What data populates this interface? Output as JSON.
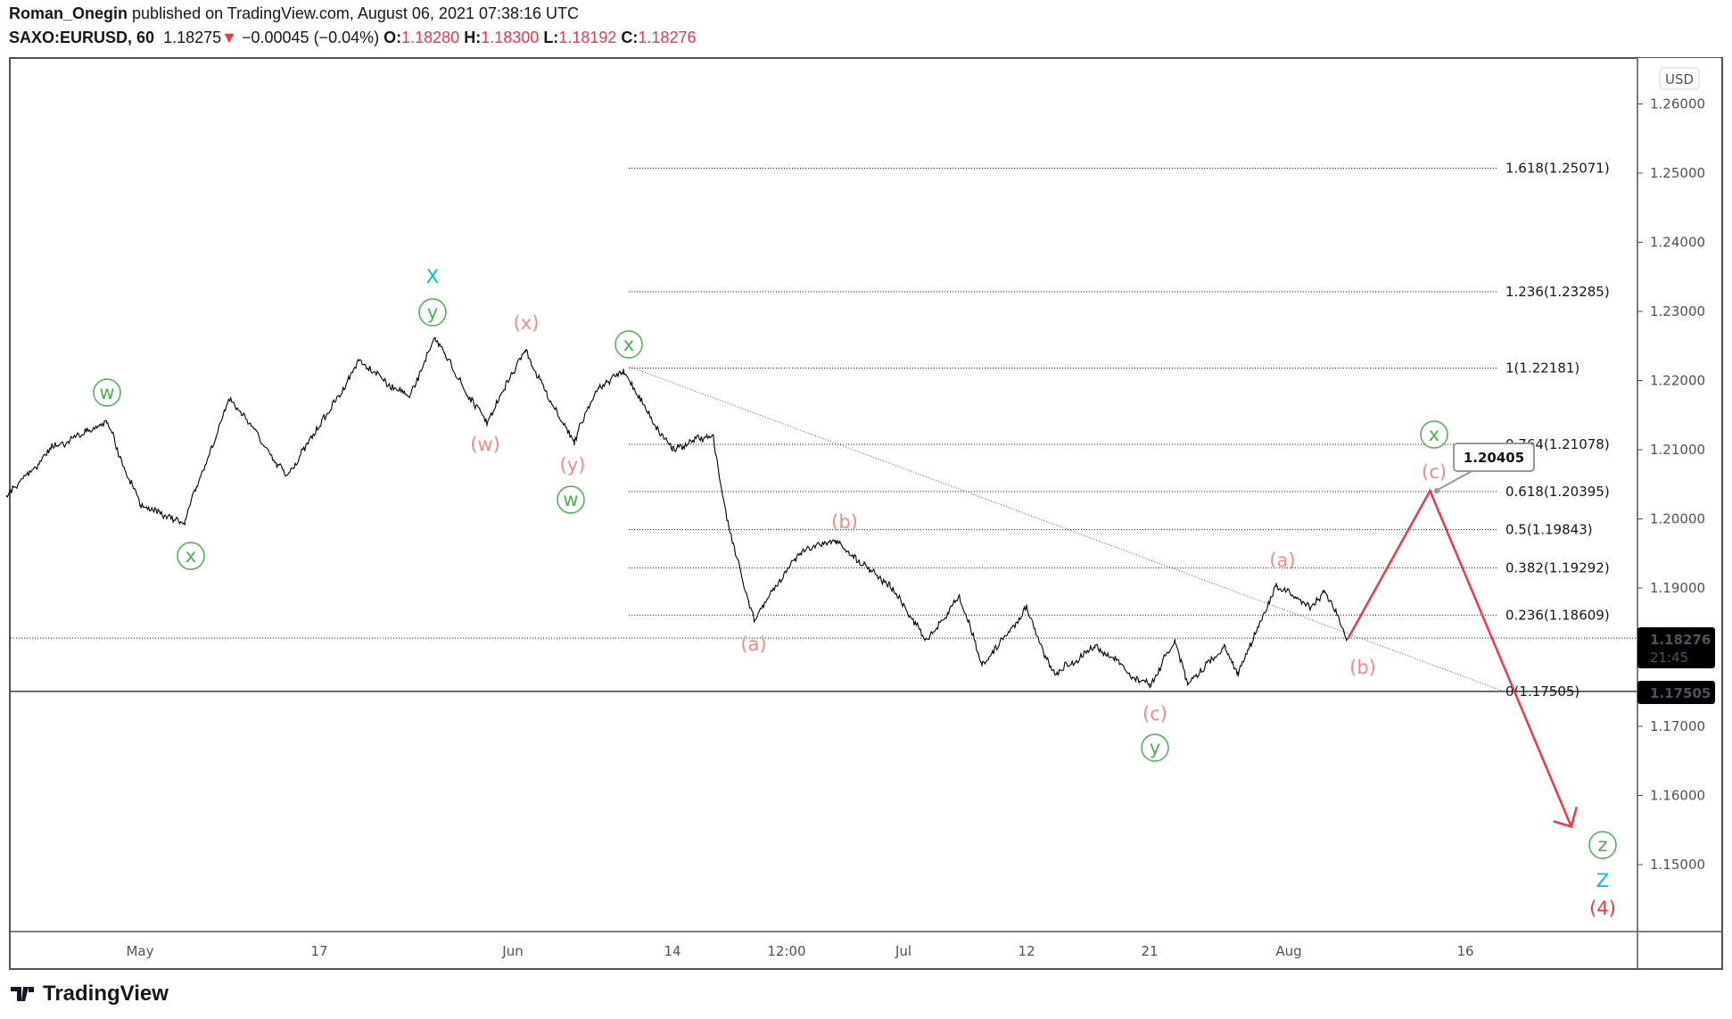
{
  "header": {
    "author": "Roman_Onegin",
    "published": "published on TradingView.com, August 06, 2021 07:38:16 UTC",
    "symbol": "SAXO:EURUSD, 60",
    "last": "1.18275",
    "change": "−0.00045 (−0.04%)",
    "o_label": "O:",
    "o": "1.18280",
    "h_label": "H:",
    "h": "1.18300",
    "l_label": "L:",
    "l": "1.18192",
    "c_label": "C:",
    "c": "1.18276",
    "down_icon": "triangle-down-icon",
    "down_color": "#f23645"
  },
  "currency": "USD",
  "price_ticks": [
    "1.26000",
    "1.25000",
    "1.24000",
    "1.23000",
    "1.22000",
    "1.21000",
    "1.20000",
    "1.19000",
    "1.17000",
    "1.16000",
    "1.15000"
  ],
  "time_ticks": [
    "May",
    "17",
    "Jun",
    "14",
    "12:00",
    "Jul",
    "12",
    "21",
    "Aug",
    "16"
  ],
  "current_price": {
    "price": "1.18276",
    "countdown": "21:45"
  },
  "level_price": "1.17505",
  "callout": "1.20405",
  "fib_levels": [
    {
      "label": "1.618(1.25071)",
      "price": 1.25071
    },
    {
      "label": "1.236(1.23285)",
      "price": 1.23285
    },
    {
      "label": "1(1.22181)",
      "price": 1.22181
    },
    {
      "label": "0.764(1.21078)",
      "price": 1.21078
    },
    {
      "label": "0.618(1.20395)",
      "price": 1.20395
    },
    {
      "label": "0.5(1.19843)",
      "price": 1.19843
    },
    {
      "label": "0.382(1.19292)",
      "price": 1.19292
    },
    {
      "label": "0.236(1.18609)",
      "price": 1.18609
    },
    {
      "label": "0(1.17505)",
      "price": 1.17505
    }
  ],
  "wave_labels": [
    {
      "text": "X",
      "style": "cyan"
    },
    {
      "text": "y",
      "style": "green-circle"
    },
    {
      "text": "(x)",
      "style": "pink"
    },
    {
      "text": "w",
      "style": "green-circle"
    },
    {
      "text": "x",
      "style": "green-circle"
    },
    {
      "text": "(w)",
      "style": "pink"
    },
    {
      "text": "(y)",
      "style": "pink"
    },
    {
      "text": "w",
      "style": "green-circle"
    },
    {
      "text": "x",
      "style": "green-circle"
    },
    {
      "text": "(b)",
      "style": "pink"
    },
    {
      "text": "(a)",
      "style": "pink"
    },
    {
      "text": "(c)",
      "style": "pink"
    },
    {
      "text": "y",
      "style": "green-circle"
    },
    {
      "text": "(a)",
      "style": "pink"
    },
    {
      "text": "(b)",
      "style": "pink"
    },
    {
      "text": "x",
      "style": "green-circle"
    },
    {
      "text": "(c)",
      "style": "pink"
    },
    {
      "text": "z",
      "style": "green-circle"
    },
    {
      "text": "Z",
      "style": "cyan"
    },
    {
      "text": "(4)",
      "style": "red"
    }
  ],
  "colors": {
    "green": "#4caf50",
    "pink": "#f28b82",
    "cyan": "#00bcd4",
    "red": "#f23645",
    "axis": "#50535e"
  },
  "chart_data": {
    "type": "line",
    "series": [
      {
        "points": [
          [
            "2021-04-19",
            1.203
          ],
          [
            "2021-04-23",
            1.2102
          ],
          [
            "2021-04-28",
            1.2142
          ],
          [
            "2021-05-01",
            1.2022
          ],
          [
            "2021-05-05",
            1.1994
          ],
          [
            "2021-05-09",
            1.2174
          ],
          [
            "2021-05-14",
            1.2062
          ],
          [
            "2021-05-20",
            1.223
          ],
          [
            "2021-05-24",
            1.2174
          ],
          [
            "2021-05-26",
            1.2262
          ],
          [
            "2021-05-30",
            1.2137
          ],
          [
            "2021-06-02",
            1.2246
          ],
          [
            "2021-06-06",
            1.211
          ],
          [
            "2021-06-08",
            1.219
          ],
          [
            "2021-06-10",
            1.2214
          ],
          [
            "2021-06-14",
            1.2102
          ],
          [
            "2021-06-17",
            1.2118
          ],
          [
            "2021-06-18",
            1.1998
          ],
          [
            "2021-06-20",
            1.1855
          ],
          [
            "2021-06-23",
            1.1942
          ],
          [
            "2021-06-26",
            1.197
          ],
          [
            "2021-06-30",
            1.1903
          ],
          [
            "2021-07-03",
            1.1823
          ],
          [
            "2021-07-06",
            1.1887
          ],
          [
            "2021-07-08",
            1.1791
          ],
          [
            "2021-07-12",
            1.1874
          ],
          [
            "2021-07-14",
            1.1778
          ],
          [
            "2021-07-17",
            1.1815
          ],
          [
            "2021-07-21",
            1.1759
          ],
          [
            "2021-07-23",
            1.1823
          ],
          [
            "2021-07-24",
            1.1762
          ],
          [
            "2021-07-27",
            1.1815
          ],
          [
            "2021-07-28",
            1.1775
          ],
          [
            "2021-07-31",
            1.1903
          ],
          [
            "2021-08-03",
            1.1871
          ],
          [
            "2021-08-04",
            1.1895
          ],
          [
            "2021-08-06",
            1.1826
          ]
        ]
      }
    ],
    "projection": [
      [
        "2021-08-06",
        1.1826
      ],
      [
        "2021-08-13",
        1.20405
      ],
      [
        "2021-08-25",
        1.1555
      ]
    ],
    "ylim": [
      1.14,
      1.267
    ],
    "grid": false
  }
}
